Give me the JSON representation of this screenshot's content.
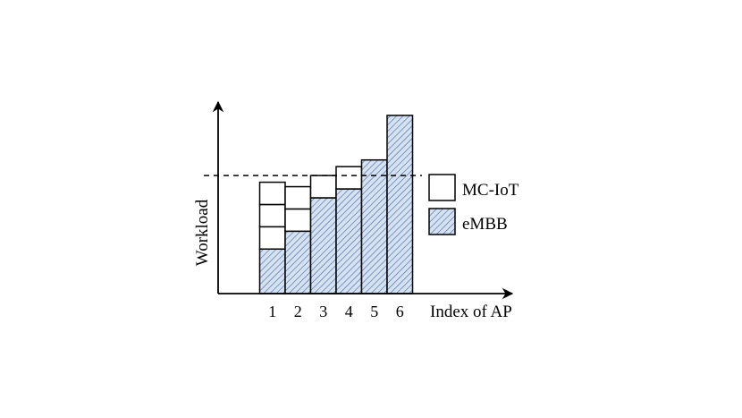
{
  "chart_data": {
    "type": "bar",
    "stacked": true,
    "title": "",
    "xlabel": "Index of AP",
    "ylabel": "Workload",
    "categories": [
      "1",
      "2",
      "3",
      "4",
      "5",
      "6"
    ],
    "series": [
      {
        "name": "eMBB",
        "values": [
          2,
          2.8,
          4.3,
          4.7,
          6,
          8
        ],
        "color": "#c7d6ec",
        "pattern": "diagonal-hatch"
      },
      {
        "name": "MC-IoT",
        "values": [
          3,
          2,
          1,
          1,
          0,
          0
        ],
        "color": "#ffffff",
        "unit_blocks": true
      }
    ],
    "threshold_line": {
      "value": 5.3,
      "style": "dashed"
    },
    "ylim": [
      0,
      8.6
    ],
    "grid": false,
    "axis_ticks_y": false,
    "legend_position": "right"
  }
}
